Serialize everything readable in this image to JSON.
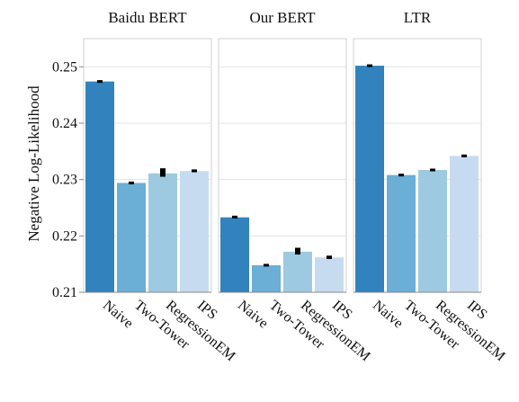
{
  "chart_data": {
    "type": "bar",
    "ylabel": "Negative Log-Likelihood",
    "ylim": [
      0.21,
      0.255
    ],
    "yticks": [
      0.21,
      0.22,
      0.23,
      0.24,
      0.25
    ],
    "ytick_labels": [
      "0.21",
      "0.22",
      "0.23",
      "0.24",
      "0.25"
    ],
    "grid": true,
    "categories": [
      "Naive",
      "Two-Tower",
      "RegressionEM",
      "IPS"
    ],
    "colors": [
      "#3182bd",
      "#6baed6",
      "#9ecae1",
      "#c6dbef"
    ],
    "panels": [
      {
        "title": "Baidu BERT",
        "values": [
          0.2474,
          0.2294,
          0.2311,
          0.2315
        ],
        "error_low": [
          0.2472,
          0.2292,
          0.2305,
          0.2313
        ],
        "error_high": [
          0.2476,
          0.2296,
          0.232,
          0.2318
        ]
      },
      {
        "title": "Our BERT",
        "values": [
          0.2233,
          0.2148,
          0.2172,
          0.2162
        ],
        "error_low": [
          0.2232,
          0.2146,
          0.2167,
          0.2159
        ],
        "error_high": [
          0.2235,
          0.215,
          0.2179,
          0.2165
        ]
      },
      {
        "title": "LTR",
        "values": [
          0.2502,
          0.2308,
          0.2317,
          0.2342
        ],
        "error_low": [
          0.25,
          0.2306,
          0.2315,
          0.2342
        ],
        "error_high": [
          0.2504,
          0.231,
          0.2319,
          0.2342
        ]
      }
    ]
  }
}
